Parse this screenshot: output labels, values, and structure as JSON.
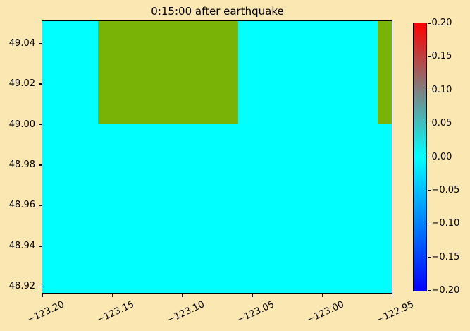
{
  "figure": {
    "background_color": "#FBE7B1",
    "spine_color": "#000000"
  },
  "chart_data": {
    "type": "heatmap",
    "title": "0:15:00 after earthquake",
    "xlabel": "",
    "ylabel": "",
    "xlim": [
      -123.2,
      -122.95
    ],
    "ylim": [
      48.917,
      49.051
    ],
    "grid": false,
    "water_value": 0.0,
    "water_color": "#00ffff",
    "land_color": "#78b306",
    "xticks": [
      {
        "value": -123.2,
        "label": "−123.20"
      },
      {
        "value": -123.15,
        "label": "−123.15"
      },
      {
        "value": -123.1,
        "label": "−123.10"
      },
      {
        "value": -123.05,
        "label": "−123.05"
      },
      {
        "value": -123.0,
        "label": "−123.00"
      },
      {
        "value": -122.95,
        "label": "−122.95"
      }
    ],
    "yticks": [
      {
        "value": 49.04,
        "label": "49.04"
      },
      {
        "value": 49.02,
        "label": "49.02"
      },
      {
        "value": 49.0,
        "label": "49.00"
      },
      {
        "value": 48.98,
        "label": "48.98"
      },
      {
        "value": 48.96,
        "label": "48.96"
      },
      {
        "value": 48.94,
        "label": "48.94"
      },
      {
        "value": 48.92,
        "label": "48.92"
      }
    ],
    "regions": [
      {
        "kind": "land",
        "x0": -123.16,
        "x1": -123.06,
        "y0": 49.0,
        "y1": 49.051
      },
      {
        "kind": "land",
        "x0": -122.96,
        "x1": -122.95,
        "y0": 49.0,
        "y1": 49.051
      }
    ],
    "colorbar": {
      "min": -0.2,
      "max": 0.2,
      "legend_position": "right",
      "gradient_top_to_bottom": [
        "#ff0000",
        "#00ffff",
        "#0000ff"
      ],
      "ticks": [
        {
          "value": 0.2,
          "label": "0.20"
        },
        {
          "value": 0.15,
          "label": "0.15"
        },
        {
          "value": 0.1,
          "label": "0.10"
        },
        {
          "value": 0.05,
          "label": "0.05"
        },
        {
          "value": 0.0,
          "label": "0.00"
        },
        {
          "value": -0.05,
          "label": "−0.05"
        },
        {
          "value": -0.1,
          "label": "−0.10"
        },
        {
          "value": -0.15,
          "label": "−0.15"
        },
        {
          "value": -0.2,
          "label": "−0.20"
        }
      ]
    }
  }
}
